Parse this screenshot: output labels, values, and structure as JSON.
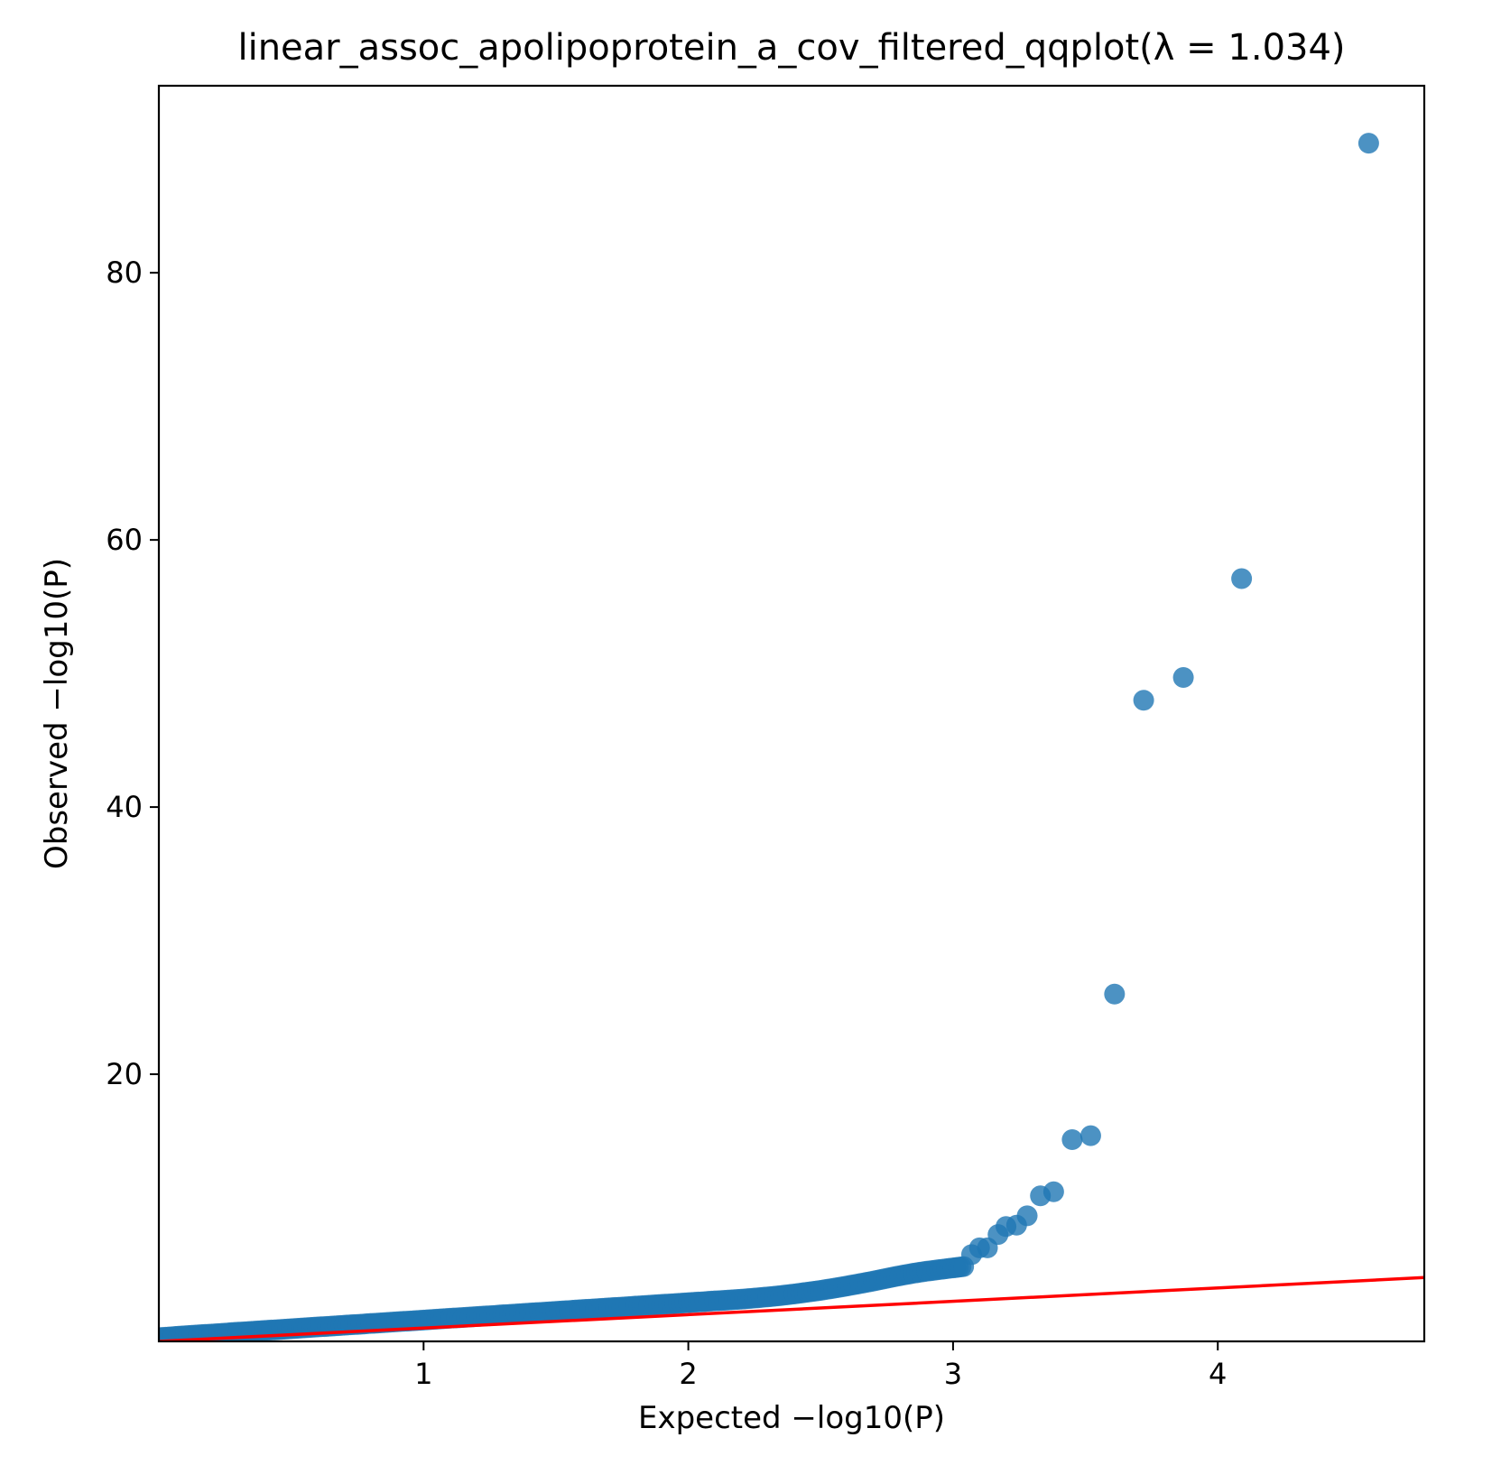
{
  "chart_data": {
    "type": "scatter",
    "title": "linear_assoc_apolipoprotein_a_cov_filtered_qqplot(λ = 1.034)",
    "xlabel": "Expected −log10(P)",
    "ylabel": "Observed −log10(P)",
    "xlim": [
      0.0,
      4.78
    ],
    "ylim": [
      0.0,
      94.0
    ],
    "xticks": [
      1,
      2,
      3,
      4
    ],
    "yticks": [
      20,
      40,
      60,
      80
    ],
    "grid": false,
    "legend": "none",
    "point_color": "#1f77b4",
    "line_color": "#ff0000",
    "reference_line": {
      "x": [
        0.0,
        4.78
      ],
      "y": [
        0.0,
        4.78
      ]
    },
    "series": [
      {
        "values": [
          [
            0.0,
            0.28
          ],
          [
            0.05,
            0.35
          ],
          [
            0.1,
            0.42
          ],
          [
            0.15,
            0.49
          ],
          [
            0.2,
            0.55
          ],
          [
            0.25,
            0.62
          ],
          [
            0.3,
            0.69
          ],
          [
            0.35,
            0.75
          ],
          [
            0.4,
            0.82
          ],
          [
            0.45,
            0.88
          ],
          [
            0.5,
            0.95
          ],
          [
            0.55,
            1.01
          ],
          [
            0.6,
            1.08
          ],
          [
            0.65,
            1.14
          ],
          [
            0.7,
            1.21
          ],
          [
            0.75,
            1.27
          ],
          [
            0.8,
            1.34
          ],
          [
            0.85,
            1.4
          ],
          [
            0.9,
            1.47
          ],
          [
            0.95,
            1.53
          ],
          [
            1.0,
            1.6
          ],
          [
            1.05,
            1.66
          ],
          [
            1.1,
            1.73
          ],
          [
            1.15,
            1.79
          ],
          [
            1.2,
            1.86
          ],
          [
            1.25,
            1.92
          ],
          [
            1.3,
            1.99
          ],
          [
            1.35,
            2.05
          ],
          [
            1.4,
            2.12
          ],
          [
            1.45,
            2.18
          ],
          [
            1.5,
            2.25
          ],
          [
            1.55,
            2.31
          ],
          [
            1.6,
            2.38
          ],
          [
            1.65,
            2.44
          ],
          [
            1.7,
            2.51
          ],
          [
            1.75,
            2.57
          ],
          [
            1.8,
            2.64
          ],
          [
            1.85,
            2.7
          ],
          [
            1.9,
            2.77
          ],
          [
            1.95,
            2.83
          ],
          [
            2.0,
            2.9
          ],
          [
            2.05,
            2.96
          ],
          [
            2.1,
            3.03
          ],
          [
            2.15,
            3.09
          ],
          [
            2.2,
            3.16
          ],
          [
            2.25,
            3.24
          ],
          [
            2.3,
            3.33
          ],
          [
            2.35,
            3.43
          ],
          [
            2.4,
            3.55
          ],
          [
            2.45,
            3.68
          ],
          [
            2.5,
            3.82
          ],
          [
            2.55,
            3.98
          ],
          [
            2.6,
            4.15
          ],
          [
            2.65,
            4.33
          ],
          [
            2.7,
            4.52
          ],
          [
            2.75,
            4.72
          ],
          [
            2.8,
            4.92
          ],
          [
            2.85,
            5.1
          ],
          [
            2.9,
            5.25
          ],
          [
            2.95,
            5.38
          ],
          [
            3.0,
            5.5
          ],
          [
            3.04,
            5.6
          ],
          [
            3.07,
            6.5
          ],
          [
            3.1,
            7.0
          ],
          [
            3.13,
            7.0
          ],
          [
            3.17,
            8.0
          ],
          [
            3.2,
            8.6
          ],
          [
            3.24,
            8.7
          ],
          [
            3.28,
            9.4
          ],
          [
            3.33,
            10.9
          ],
          [
            3.38,
            11.2
          ],
          [
            3.45,
            15.1
          ],
          [
            3.52,
            15.4
          ],
          [
            3.61,
            26.0
          ],
          [
            3.72,
            48.0
          ],
          [
            3.87,
            49.7
          ],
          [
            4.09,
            57.1
          ],
          [
            4.57,
            89.7
          ]
        ]
      }
    ]
  }
}
